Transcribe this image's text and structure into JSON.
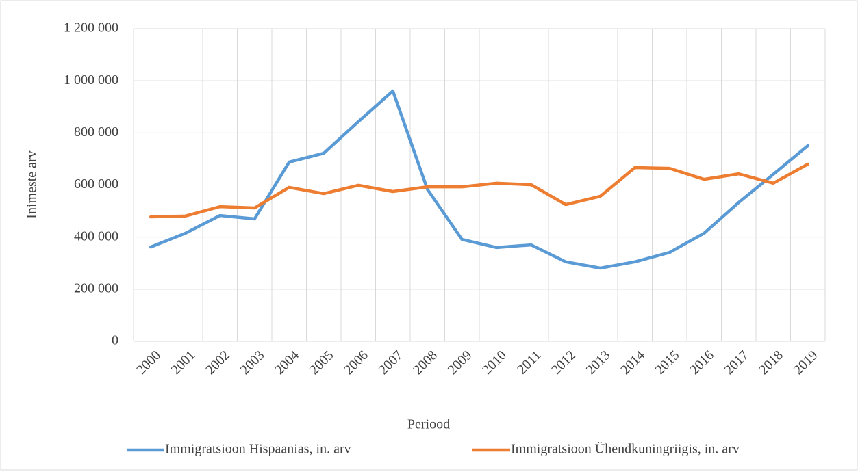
{
  "chart_data": {
    "type": "line",
    "x_label": "Periood",
    "y_label": "Inimeste arv",
    "categories": [
      "2000",
      "2001",
      "2002",
      "2003",
      "2004",
      "2005",
      "2006",
      "2007",
      "2008",
      "2009",
      "2010",
      "2011",
      "2012",
      "2013",
      "2014",
      "2015",
      "2016",
      "2017",
      "2018",
      "2019"
    ],
    "series": [
      {
        "name": "Immigratsioon Hispaanias, in. arv",
        "color": "#5b9bd5",
        "values": [
          362000,
          415000,
          483000,
          470000,
          688000,
          722000,
          843000,
          961000,
          583000,
          391000,
          360000,
          370000,
          305000,
          281000,
          305000,
          341000,
          415000,
          533000,
          641000,
          751000
        ]
      },
      {
        "name": "Immigratsioon Ühendkuningriigis, in. arv",
        "color": "#ed7d31",
        "values": [
          478000,
          481000,
          517000,
          512000,
          591000,
          567000,
          599000,
          575000,
          593000,
          593000,
          607000,
          601000,
          525000,
          557000,
          667000,
          664000,
          622000,
          643000,
          607000,
          680000
        ]
      }
    ],
    "ylim": [
      0,
      1200000
    ],
    "yticks": [
      0,
      {
        "value": 200000,
        "label": "200 000"
      },
      {
        "value": 400000,
        "label": "400 000"
      },
      {
        "value": 600000,
        "label": "600 000"
      },
      {
        "value": 800000,
        "label": "800 000"
      },
      {
        "value": 1000000,
        "label": "1 000 000"
      },
      {
        "value": 1200000,
        "label": "1 200 000"
      }
    ],
    "grid": true,
    "legend": "bottom"
  }
}
